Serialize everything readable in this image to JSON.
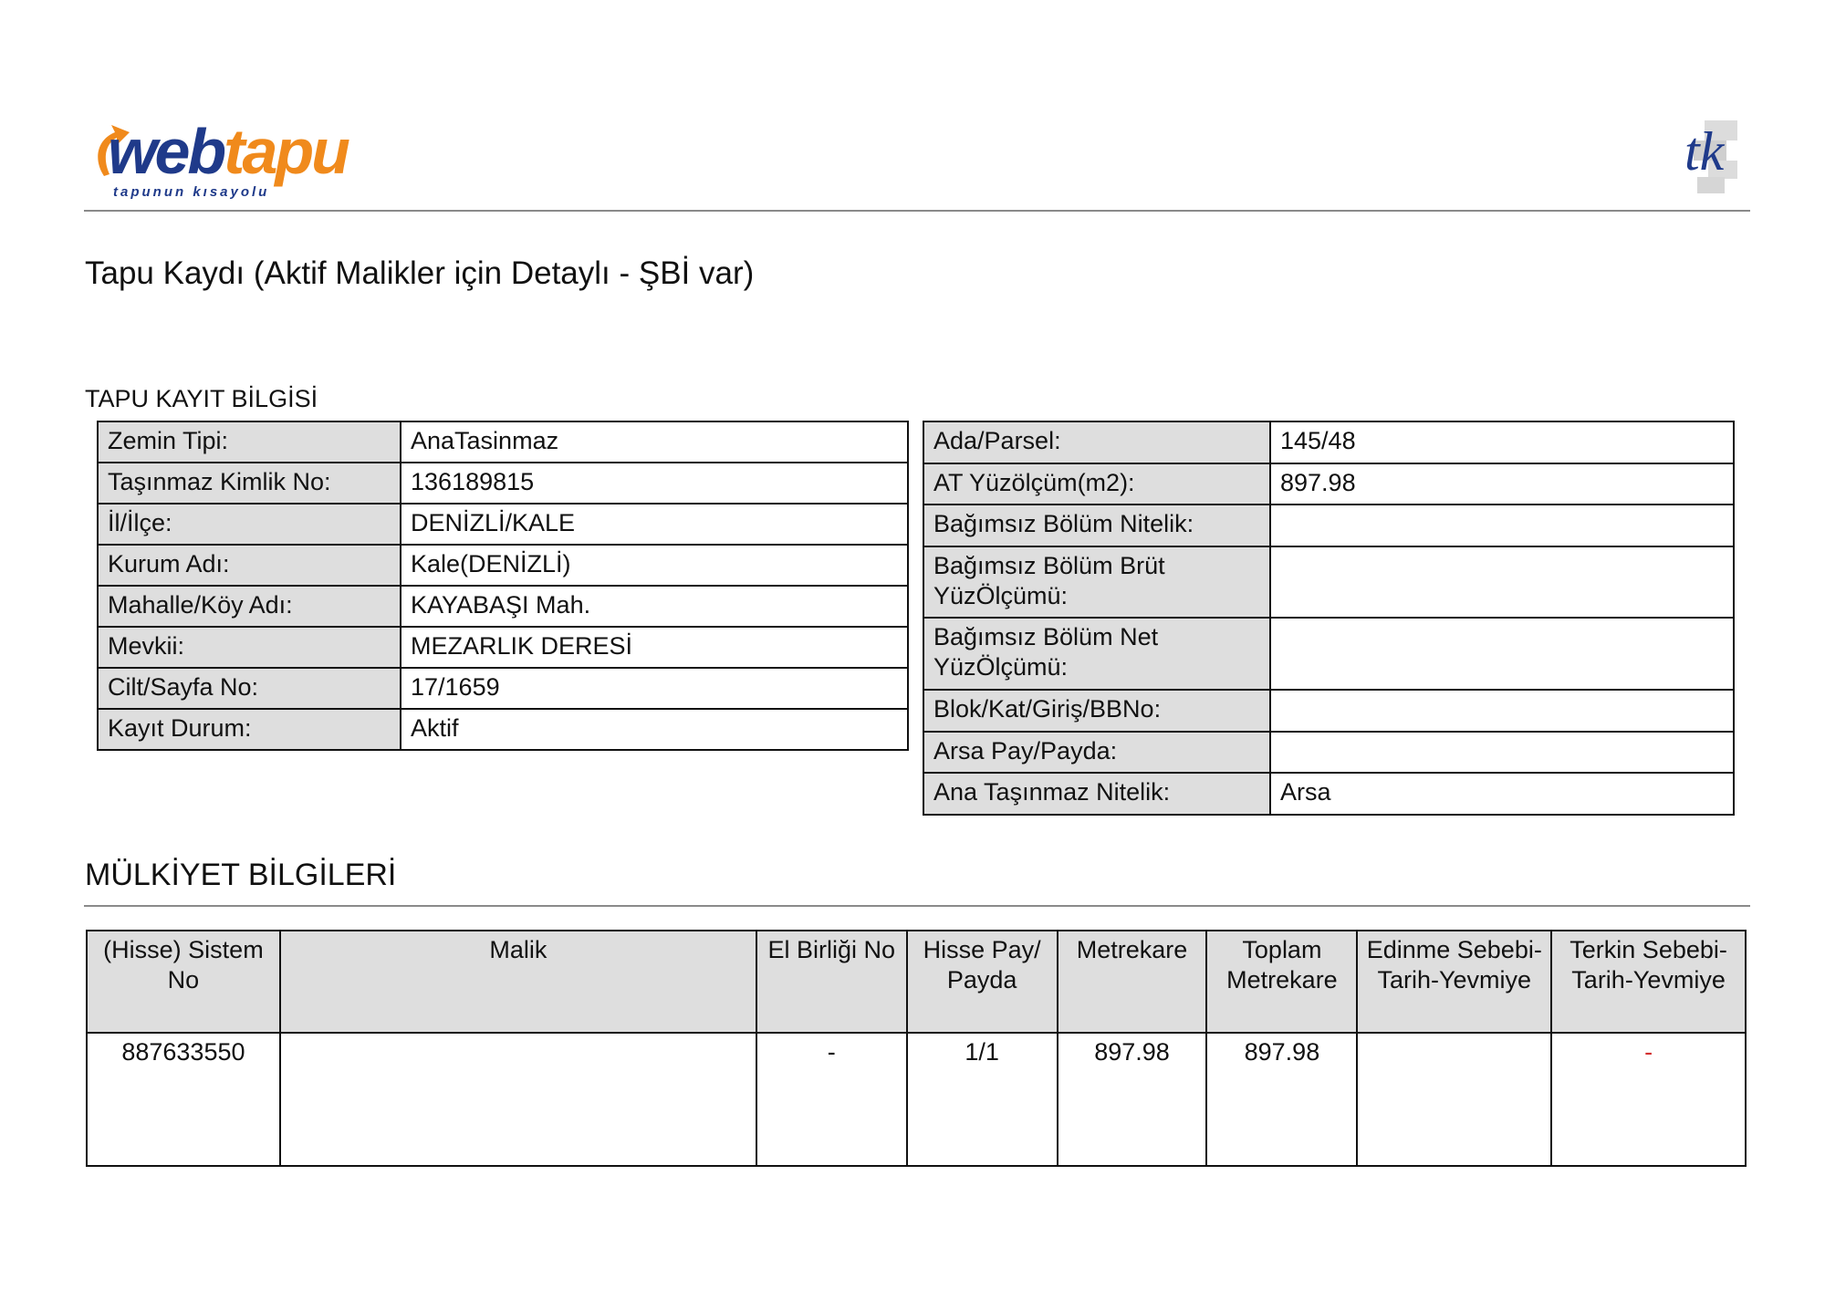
{
  "logo": {
    "brand_part1": "web",
    "brand_part2": "tapu",
    "tagline": "tapunun kısayolu",
    "colors": {
      "blue": "#1f3a8a",
      "orange": "#f08a1c"
    }
  },
  "corner_logo": {
    "text": "tk"
  },
  "title": "Tapu Kaydı (Aktif Malikler için Detaylı - ŞBİ var)",
  "tapu_section": {
    "heading": "TAPU KAYIT BİLGİSİ",
    "left_rows": [
      {
        "label": "Zemin Tipi:",
        "value": "AnaTasinmaz"
      },
      {
        "label": "Taşınmaz Kimlik No:",
        "value": "136189815"
      },
      {
        "label": "İl/İlçe:",
        "value": "DENİZLİ/KALE"
      },
      {
        "label": "Kurum Adı:",
        "value": "Kale(DENİZLİ)"
      },
      {
        "label": "Mahalle/Köy Adı:",
        "value": "KAYABAŞI Mah."
      },
      {
        "label": "Mevkii:",
        "value": "MEZARLIK DERESİ"
      },
      {
        "label": "Cilt/Sayfa No:",
        "value": "17/1659"
      },
      {
        "label": "Kayıt Durum:",
        "value": "Aktif"
      }
    ],
    "right_rows": [
      {
        "label": "Ada/Parsel:",
        "value": "145/48"
      },
      {
        "label": "AT Yüzölçüm(m2):",
        "value": "897.98"
      },
      {
        "label": "Bağımsız Bölüm Nitelik:",
        "value": ""
      },
      {
        "label": "Bağımsız Bölüm Brüt YüzÖlçümü:",
        "value": ""
      },
      {
        "label": "Bağımsız Bölüm Net YüzÖlçümü:",
        "value": ""
      },
      {
        "label": "Blok/Kat/Giriş/BBNo:",
        "value": ""
      },
      {
        "label": "Arsa Pay/Payda:",
        "value": ""
      },
      {
        "label": "Ana Taşınmaz Nitelik:",
        "value": "Arsa"
      }
    ]
  },
  "ownership": {
    "heading": "MÜLKİYET BİLGİLERİ",
    "columns": [
      "(Hisse) Sistem No",
      "Malik",
      "El Birliği No",
      "Hisse Pay/ Payda",
      "Metrekare",
      "Toplam Metrekare",
      "Edinme Sebebi-Tarih-Yevmiye",
      "Terkin Sebebi-Tarih-Yevmiye"
    ],
    "rows": [
      [
        "887633550",
        "",
        "-",
        "1/1",
        "897.98",
        "897.98",
        "",
        "-"
      ]
    ],
    "terkin_dash_color": "#d32f2f"
  }
}
